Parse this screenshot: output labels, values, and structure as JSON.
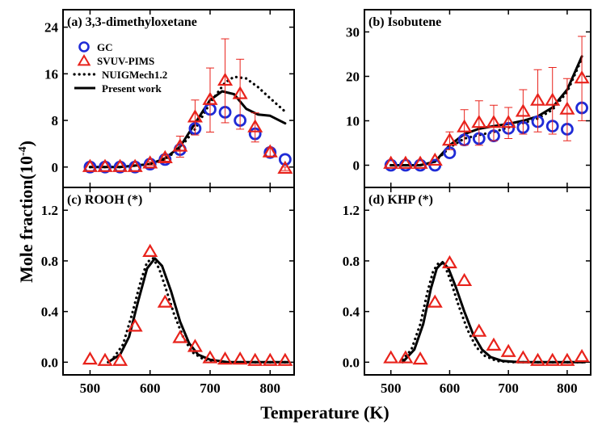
{
  "chart_data": [
    {
      "type": "scatter",
      "panel": "a",
      "title": "(a) 3,3-dimethyloxetane",
      "xlim": [
        455,
        840
      ],
      "ylim": [
        -3.5,
        27
      ],
      "x_ticks": [
        500,
        600,
        700,
        800
      ],
      "y_ticks": [
        0,
        8,
        16,
        24
      ],
      "x_tick_labels": [],
      "y_tick_labels": [
        "0",
        "8",
        "16",
        "24"
      ],
      "legend": {
        "position": "upper-left",
        "entries": [
          "GC",
          "SVUV-PIMS",
          "NUIGMech1.2",
          "Present work"
        ]
      },
      "series": [
        {
          "name": "GC",
          "marker": "circle",
          "color": "#1f2bd6",
          "x": [
            500,
            525,
            550,
            575,
            600,
            625,
            650,
            675,
            700,
            725,
            750,
            775,
            800,
            825
          ],
          "y": [
            0,
            0,
            0,
            0,
            0.5,
            1.3,
            3.0,
            6.6,
            9.9,
            9.4,
            8.0,
            5.7,
            2.5,
            1.3
          ]
        },
        {
          "name": "SVUV-PIMS",
          "marker": "triangle",
          "color": "#e8221b",
          "x": [
            500,
            525,
            550,
            575,
            600,
            625,
            650,
            675,
            700,
            725,
            750,
            775,
            800,
            825
          ],
          "y": [
            0,
            0,
            0,
            0,
            0.6,
            1.5,
            3.5,
            8.5,
            11.5,
            14.8,
            12.5,
            6.8,
            2.5,
            -0.3
          ],
          "error": [
            0,
            0,
            0,
            0,
            0.3,
            0.5,
            1.8,
            3.0,
            5.5,
            7.2,
            6.0,
            2.5,
            0.8,
            0.3
          ]
        },
        {
          "name": "NUIGMech1.2",
          "style": "dotted",
          "color": "#000000",
          "x": [
            500,
            550,
            600,
            625,
            650,
            675,
            700,
            725,
            740,
            760,
            780,
            800,
            825
          ],
          "y": [
            0,
            0,
            0.5,
            1.3,
            3.3,
            6.5,
            11.0,
            14.5,
            15.5,
            15.2,
            13.7,
            11.8,
            9.5
          ]
        },
        {
          "name": "Present work",
          "style": "solid",
          "color": "#000000",
          "x": [
            500,
            550,
            600,
            625,
            650,
            675,
            700,
            720,
            740,
            760,
            780,
            800,
            825
          ],
          "y": [
            0,
            0,
            0.5,
            1.5,
            3.5,
            7.5,
            11.5,
            13.0,
            12.5,
            10.0,
            9.0,
            8.8,
            7.5
          ]
        }
      ]
    },
    {
      "type": "scatter",
      "panel": "b",
      "title": "(b) Isobutene",
      "xlim": [
        455,
        840
      ],
      "ylim": [
        -5,
        35
      ],
      "x_ticks": [
        500,
        600,
        700,
        800
      ],
      "y_ticks": [
        0,
        10,
        20,
        30
      ],
      "x_tick_labels": [],
      "y_tick_labels": [
        "0",
        "10",
        "20",
        "30"
      ],
      "series": [
        {
          "name": "GC",
          "marker": "circle",
          "color": "#1f2bd6",
          "x": [
            500,
            525,
            550,
            575,
            600,
            625,
            650,
            675,
            700,
            725,
            750,
            775,
            800,
            825
          ],
          "y": [
            0,
            0,
            0,
            0,
            2.8,
            5.7,
            6.0,
            6.6,
            8.3,
            8.5,
            9.8,
            8.8,
            8.1,
            12.9
          ]
        },
        {
          "name": "SVUV-PIMS",
          "marker": "triangle",
          "color": "#e8221b",
          "x": [
            500,
            525,
            550,
            575,
            600,
            625,
            650,
            675,
            700,
            725,
            750,
            775,
            800,
            825
          ],
          "y": [
            0.3,
            0.3,
            0.3,
            1.0,
            5.5,
            8.5,
            9.5,
            9.5,
            9.5,
            12.0,
            14.5,
            14.5,
            12.5,
            19.5
          ],
          "error": [
            0,
            0,
            0,
            0,
            2.0,
            4.0,
            5.0,
            4.0,
            3.5,
            5.0,
            7.0,
            7.5,
            7.0,
            9.5
          ]
        },
        {
          "name": "NUIGMech1.2",
          "style": "dotted",
          "color": "#000000",
          "x": [
            500,
            550,
            575,
            600,
            625,
            650,
            675,
            700,
            725,
            750,
            775,
            800,
            825
          ],
          "y": [
            0,
            0,
            0.8,
            4.0,
            6.0,
            6.8,
            7.5,
            8.5,
            9.5,
            10.5,
            12.5,
            16.5,
            24.0
          ]
        },
        {
          "name": "Present work",
          "style": "solid",
          "color": "#000000",
          "x": [
            500,
            550,
            575,
            600,
            625,
            650,
            675,
            700,
            725,
            750,
            775,
            800,
            825
          ],
          "y": [
            0,
            0,
            0.8,
            4.5,
            7.0,
            8.2,
            8.8,
            9.3,
            10.0,
            11.0,
            13.0,
            17.0,
            24.5
          ]
        }
      ]
    },
    {
      "type": "scatter",
      "panel": "c",
      "title": "(c) ROOH (*)",
      "xlim": [
        455,
        840
      ],
      "ylim": [
        -0.1,
        1.38
      ],
      "x_ticks": [
        500,
        600,
        700,
        800
      ],
      "y_ticks": [
        0.0,
        0.4,
        0.8,
        1.2
      ],
      "x_tick_labels": [
        "500",
        "600",
        "700",
        "800"
      ],
      "y_tick_labels": [
        "0.0",
        "0.4",
        "0.8",
        "1.2"
      ],
      "series": [
        {
          "name": "SVUV-PIMS",
          "marker": "triangle",
          "color": "#e8221b",
          "x": [
            500,
            525,
            550,
            575,
            600,
            625,
            650,
            675,
            700,
            725,
            750,
            775,
            800,
            825
          ],
          "y": [
            0.02,
            0.01,
            0.01,
            0.28,
            0.87,
            0.47,
            0.19,
            0.12,
            0.03,
            0.02,
            0.02,
            0.01,
            0.01,
            0.01
          ]
        },
        {
          "name": "NUIGMech1.2",
          "style": "dotted",
          "color": "#000000",
          "x": [
            540,
            555,
            570,
            585,
            595,
            605,
            615,
            625,
            640,
            655,
            670,
            690,
            720,
            760,
            830
          ],
          "y": [
            0.04,
            0.14,
            0.38,
            0.65,
            0.79,
            0.82,
            0.74,
            0.6,
            0.38,
            0.2,
            0.08,
            0.02,
            0.0,
            0.0,
            0.0
          ]
        },
        {
          "name": "Present work",
          "style": "solid",
          "color": "#000000",
          "x": [
            530,
            550,
            565,
            580,
            595,
            608,
            620,
            635,
            650,
            665,
            680,
            700,
            730,
            770,
            830
          ],
          "y": [
            0.0,
            0.06,
            0.2,
            0.48,
            0.74,
            0.82,
            0.76,
            0.56,
            0.32,
            0.15,
            0.06,
            0.02,
            0.0,
            0.0,
            0.0
          ]
        }
      ]
    },
    {
      "type": "scatter",
      "panel": "d",
      "title": "(d) KHP (*)",
      "xlim": [
        455,
        840
      ],
      "ylim": [
        -0.1,
        1.38
      ],
      "x_ticks": [
        500,
        600,
        700,
        800
      ],
      "y_ticks": [
        0.0,
        0.4,
        0.8,
        1.2
      ],
      "x_tick_labels": [
        "500",
        "600",
        "700",
        "800"
      ],
      "y_tick_labels": [
        "0.0",
        "0.4",
        "0.8",
        "1.2"
      ],
      "series": [
        {
          "name": "SVUV-PIMS",
          "marker": "triangle",
          "color": "#e8221b",
          "x": [
            500,
            525,
            550,
            575,
            600,
            625,
            650,
            675,
            700,
            725,
            750,
            775,
            800,
            825
          ],
          "y": [
            0.03,
            0.03,
            0.02,
            0.47,
            0.78,
            0.64,
            0.24,
            0.13,
            0.08,
            0.03,
            0.01,
            0.01,
            0.01,
            0.04
          ]
        },
        {
          "name": "NUIGMech1.2",
          "style": "dotted",
          "color": "#000000",
          "x": [
            520,
            535,
            550,
            562,
            572,
            582,
            592,
            602,
            615,
            630,
            645,
            660,
            680,
            710,
            760,
            830
          ],
          "y": [
            0.02,
            0.1,
            0.3,
            0.55,
            0.72,
            0.79,
            0.76,
            0.64,
            0.45,
            0.26,
            0.12,
            0.05,
            0.01,
            0.0,
            0.0,
            0.0
          ]
        },
        {
          "name": "Present work",
          "style": "solid",
          "color": "#000000",
          "x": [
            520,
            540,
            555,
            568,
            578,
            588,
            598,
            610,
            625,
            640,
            655,
            670,
            690,
            720,
            760,
            830
          ],
          "y": [
            0.0,
            0.1,
            0.3,
            0.58,
            0.74,
            0.79,
            0.74,
            0.6,
            0.4,
            0.22,
            0.1,
            0.04,
            0.01,
            0.0,
            0.0,
            0.0
          ]
        }
      ]
    }
  ],
  "axes": {
    "ylabel": "Mole fraction(10",
    "ylabel_exponent": "-4",
    "ylabel_close": ")",
    "xlabel": "Temperature (K)"
  },
  "colors": {
    "gc": "#1f2bd6",
    "svuv": "#e8221b",
    "error": "#e8221b",
    "model": "#000000"
  }
}
